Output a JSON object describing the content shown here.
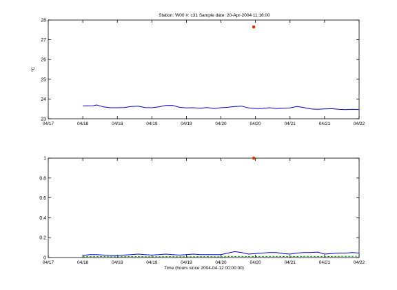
{
  "figure": {
    "title": "Station: W00 #: c31  Sample date: 20-Apr-2004 11:16:00",
    "xlabel": "Time (hours since 2004-04-12 00:00:00)"
  },
  "chart_data": [
    {
      "type": "line",
      "ylabel": "°C",
      "ylim": [
        23,
        28
      ],
      "yticks": [
        23,
        24,
        25,
        26,
        27,
        28
      ],
      "xlim": [
        0,
        9
      ],
      "xticks": [
        "04/17",
        "04/18",
        "04/18",
        "04/19",
        "04/19",
        "04/20",
        "04/20",
        "04/21",
        "04/21",
        "04/22"
      ],
      "series": [
        {
          "color": "#0000cc",
          "x": [
            1.0,
            1.3,
            1.4,
            1.6,
            1.8,
            2.0,
            2.2,
            2.4,
            2.6,
            2.8,
            3.0,
            3.2,
            3.4,
            3.6,
            3.8,
            4.0,
            4.2,
            4.4,
            4.6,
            4.8,
            5.0,
            5.2,
            5.4,
            5.6,
            5.8,
            6.0,
            6.2,
            6.4,
            6.6,
            6.8,
            7.0,
            7.2,
            7.4,
            7.6,
            7.8,
            8.0,
            8.2,
            8.4,
            8.6,
            8.8,
            9.0
          ],
          "y": [
            23.65,
            23.66,
            23.7,
            23.6,
            23.56,
            23.56,
            23.57,
            23.62,
            23.64,
            23.57,
            23.56,
            23.6,
            23.67,
            23.68,
            23.58,
            23.55,
            23.56,
            23.53,
            23.57,
            23.52,
            23.56,
            23.58,
            23.62,
            23.64,
            23.55,
            23.52,
            23.52,
            23.56,
            23.52,
            23.53,
            23.55,
            23.62,
            23.57,
            23.5,
            23.48,
            23.5,
            23.51,
            23.48,
            23.46,
            23.48,
            23.47
          ]
        },
        {
          "color": "#dd3300",
          "marker": "dot",
          "x": [
            5.95
          ],
          "y": [
            27.65
          ]
        }
      ]
    },
    {
      "type": "line",
      "ylabel": "",
      "ylim": [
        0,
        1
      ],
      "yticks": [
        "0",
        "0.2",
        "0.4",
        "0.6",
        "0.8",
        "1"
      ],
      "xlim": [
        0,
        9
      ],
      "xticks": [
        "04/17",
        "04/18",
        "04/18",
        "04/19",
        "04/19",
        "04/20",
        "04/20",
        "04/21",
        "04/21",
        "04/22"
      ],
      "series": [
        {
          "color": "#0000cc",
          "x": [
            1.0,
            1.2,
            1.4,
            1.6,
            1.8,
            2.0,
            2.2,
            2.4,
            2.6,
            2.8,
            3.0,
            3.2,
            3.4,
            3.6,
            3.8,
            4.0,
            4.2,
            4.4,
            4.6,
            4.8,
            5.0,
            5.2,
            5.4,
            5.6,
            5.8,
            6.0,
            6.2,
            6.4,
            6.6,
            6.8,
            7.0,
            7.2,
            7.4,
            7.6,
            7.8,
            8.0,
            8.2,
            8.4,
            8.6,
            8.8,
            9.0
          ],
          "y": [
            0.02,
            0.03,
            0.03,
            0.025,
            0.02,
            0.02,
            0.025,
            0.03,
            0.035,
            0.03,
            0.025,
            0.03,
            0.035,
            0.03,
            0.025,
            0.03,
            0.035,
            0.03,
            0.03,
            0.03,
            0.03,
            0.045,
            0.06,
            0.05,
            0.035,
            0.04,
            0.045,
            0.05,
            0.05,
            0.04,
            0.035,
            0.045,
            0.05,
            0.05,
            0.055,
            0.035,
            0.04,
            0.045,
            0.045,
            0.05,
            0.045
          ]
        },
        {
          "color": "#00aa00",
          "dashed": true,
          "x": [
            1.0,
            1.5,
            2.0,
            2.5,
            3.0,
            3.5,
            4.0,
            4.5,
            5.0,
            5.5,
            6.0,
            6.5,
            7.0,
            7.5,
            8.0,
            8.5,
            9.0
          ],
          "y": [
            0.008,
            0.01,
            0.008,
            0.01,
            0.008,
            0.01,
            0.008,
            0.01,
            0.008,
            0.012,
            0.01,
            0.012,
            0.01,
            0.012,
            0.01,
            0.012,
            0.012
          ]
        },
        {
          "color": "#dd3300",
          "marker": "dot",
          "x": [
            5.95
          ],
          "y": [
            1.0
          ]
        }
      ]
    }
  ]
}
